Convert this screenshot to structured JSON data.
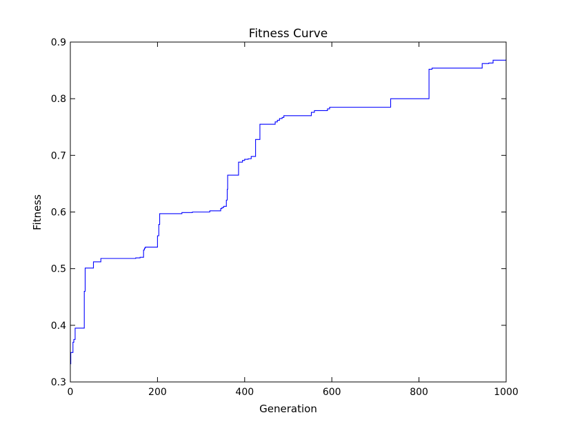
{
  "chart_data": {
    "type": "line",
    "title": "Fitness Curve",
    "xlabel": "Generation",
    "ylabel": "Fitness",
    "xlim": [
      0,
      1000
    ],
    "ylim": [
      0.3,
      0.9
    ],
    "grid": false,
    "xticks": [
      0,
      200,
      400,
      600,
      800,
      1000
    ],
    "xtick_labels": [
      "0",
      "200",
      "400",
      "600",
      "800",
      "1000"
    ],
    "yticks": [
      0.3,
      0.4,
      0.5,
      0.6,
      0.7,
      0.8,
      0.9
    ],
    "ytick_labels": [
      "0.3",
      "0.4",
      "0.5",
      "0.6",
      "0.7",
      "0.8",
      "0.9"
    ],
    "line_color": "#0000ff",
    "series": [
      {
        "step": true,
        "x": [
          0,
          1,
          6,
          8,
          11,
          32,
          34,
          36,
          53,
          70,
          150,
          160,
          168,
          170,
          172,
          200,
          203,
          205,
          207,
          256,
          280,
          320,
          345,
          348,
          352,
          358,
          360,
          361,
          363,
          370,
          386,
          390,
          395,
          400,
          408,
          415,
          425,
          435,
          470,
          475,
          480,
          486,
          490,
          550,
          553,
          560,
          590,
          595,
          735,
          823,
          830,
          945,
          960,
          970,
          1000
        ],
        "y": [
          0.332,
          0.352,
          0.37,
          0.375,
          0.395,
          0.46,
          0.501,
          0.501,
          0.512,
          0.518,
          0.519,
          0.52,
          0.533,
          0.536,
          0.538,
          0.558,
          0.578,
          0.597,
          0.597,
          0.599,
          0.6,
          0.602,
          0.606,
          0.608,
          0.61,
          0.621,
          0.64,
          0.665,
          0.665,
          0.665,
          0.688,
          0.688,
          0.691,
          0.693,
          0.694,
          0.698,
          0.728,
          0.755,
          0.759,
          0.762,
          0.765,
          0.767,
          0.77,
          0.77,
          0.776,
          0.779,
          0.782,
          0.785,
          0.8,
          0.852,
          0.854,
          0.862,
          0.863,
          0.868,
          0.868
        ]
      }
    ]
  }
}
